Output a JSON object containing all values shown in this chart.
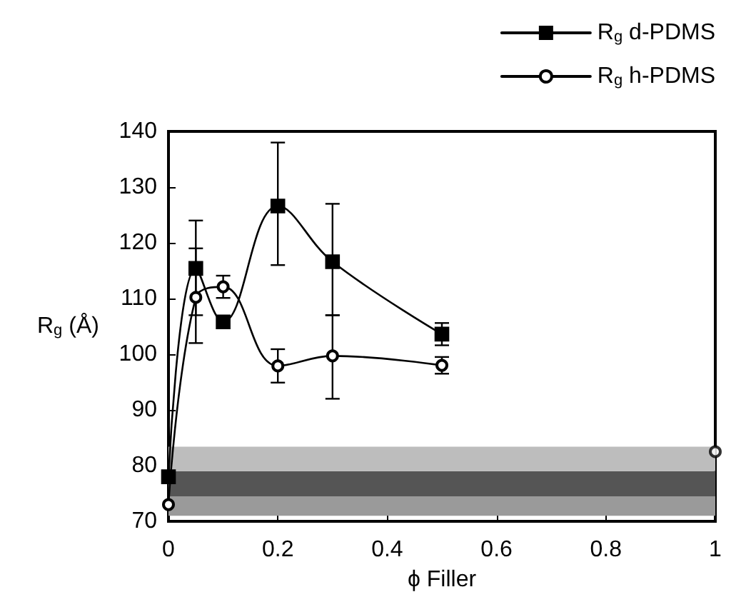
{
  "chart_data": {
    "type": "line",
    "xlabel": "ϕ Filler",
    "ylabel": "R$_{g}$ (Å)",
    "xlim": [
      0,
      1
    ],
    "xticks": [
      0,
      0.2,
      0.4,
      0.6,
      0.8,
      1
    ],
    "ylim": [
      70,
      140
    ],
    "yticks": [
      70,
      80,
      90,
      100,
      110,
      120,
      130,
      140
    ],
    "grid": false,
    "legend": "top right",
    "line_style": "solid",
    "series": [
      {
        "name": "R$_{g}$ d-PDMS",
        "color": "#000000",
        "marker": "square",
        "x": [
          0,
          0.05,
          0.1,
          0.2,
          0.3,
          0.5
        ],
        "values": [
          78,
          115.4,
          105.8,
          126.6,
          116.6,
          103.6
        ],
        "errors": [
          null,
          [
            102,
            124
          ],
          null,
          [
            116,
            138
          ],
          [
            107,
            127
          ],
          2
        ]
      },
      {
        "name": "R$_{g}$ h-PDMS",
        "color": "#000000",
        "marker": "circle",
        "x": [
          0,
          0.05,
          0.1,
          0.2,
          0.3,
          0.5
        ],
        "values": [
          73,
          110.2,
          112.1,
          97.9,
          99.7,
          98
        ],
        "errors": [
          null,
          [
            107,
            119
          ],
          2,
          3,
          [
            92,
            107
          ],
          1.5
        ]
      },
      {
        "type": "scatter",
        "color": "#000000",
        "marker": "circle",
        "x": [
          1
        ],
        "values": [
          82.5
        ]
      }
    ],
    "bands": [
      {
        "axis": "y",
        "from": 71,
        "to": 74.5,
        "color": "#9a9a9a"
      },
      {
        "axis": "y",
        "from": 74.5,
        "to": 79,
        "color": "#555555"
      },
      {
        "axis": "y",
        "from": 79,
        "to": 83.4,
        "color": "#bdbdbd"
      }
    ]
  }
}
